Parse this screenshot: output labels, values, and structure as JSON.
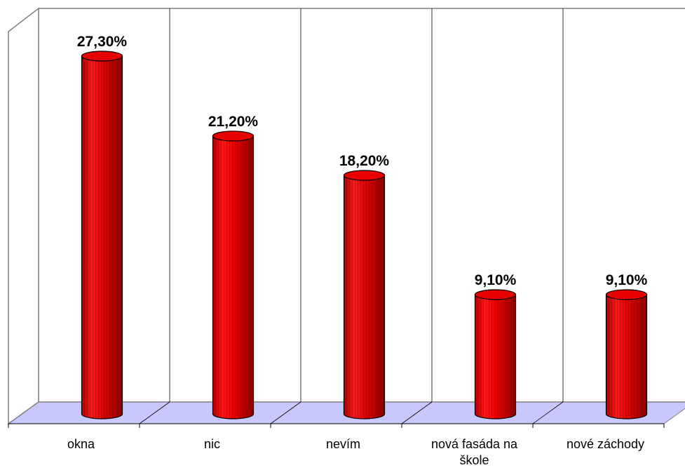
{
  "chart_data": {
    "type": "bar",
    "style": "3d-cylinder",
    "categories": [
      "okna",
      "nic",
      "nevím",
      "nová fasáda na škole",
      "nové záchody"
    ],
    "category_label_lines": [
      [
        "okna"
      ],
      [
        "nic"
      ],
      [
        "nevím"
      ],
      [
        "nová fasáda na",
        "škole"
      ],
      [
        "nové záchody"
      ]
    ],
    "values": [
      27.3,
      21.2,
      18.2,
      9.1,
      9.1
    ],
    "data_labels": [
      "27,30%",
      "21,20%",
      "18,20%",
      "9,10%",
      "9,10%"
    ],
    "ylim": [
      0,
      30
    ],
    "grid": true,
    "legend": "none",
    "colors": {
      "bar_fill": "#e60000",
      "bar_dark": "#9a0000",
      "bar_stripe": "#7a0000",
      "floor": "#c8c8ff",
      "wall_line": "#808080",
      "grid_line": "#000000"
    }
  }
}
